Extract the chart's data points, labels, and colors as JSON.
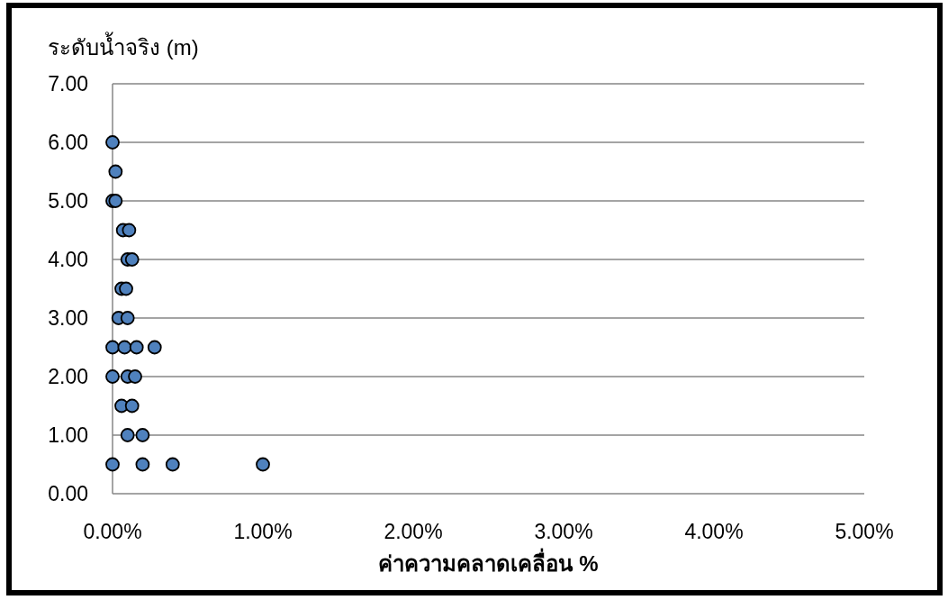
{
  "chart_data": {
    "type": "scatter",
    "ylabel": "ระดับน้ำจริง (m)",
    "xlabel": "ค่าความคลาดเคลื่อน %",
    "x": [
      0.0,
      0.02,
      0.0,
      0.02,
      0.07,
      0.11,
      0.1,
      0.13,
      0.06,
      0.09,
      0.04,
      0.1,
      0.0,
      0.08,
      0.16,
      0.28,
      0.0,
      0.1,
      0.15,
      0.06,
      0.13,
      0.1,
      0.2,
      0.0,
      0.2,
      0.4,
      1.0
    ],
    "values": [
      6.0,
      5.5,
      5.0,
      5.0,
      4.5,
      4.5,
      4.0,
      4.0,
      3.5,
      3.5,
      3.0,
      3.0,
      2.5,
      2.5,
      2.5,
      2.5,
      2.0,
      2.0,
      2.0,
      1.5,
      1.5,
      1.0,
      1.0,
      0.5,
      0.5,
      0.5,
      0.5
    ],
    "color": "#4f81bd",
    "marker": "circle",
    "grid": "y",
    "xlim": [
      0,
      5
    ],
    "xticks": [
      {
        "value": 0,
        "label": "0.00%"
      },
      {
        "value": 1,
        "label": "1.00%"
      },
      {
        "value": 2,
        "label": "2.00%"
      },
      {
        "value": 3,
        "label": "3.00%"
      },
      {
        "value": 4,
        "label": "4.00%"
      },
      {
        "value": 5,
        "label": "5.00%"
      }
    ],
    "ylim": [
      0,
      7
    ],
    "yticks": [
      {
        "value": 0,
        "label": "0.00"
      },
      {
        "value": 1,
        "label": "1.00"
      },
      {
        "value": 2,
        "label": "2.00"
      },
      {
        "value": 3,
        "label": "3.00"
      },
      {
        "value": 4,
        "label": "4.00"
      },
      {
        "value": 5,
        "label": "5.00"
      },
      {
        "value": 6,
        "label": "6.00"
      },
      {
        "value": 7,
        "label": "7.00"
      }
    ]
  }
}
